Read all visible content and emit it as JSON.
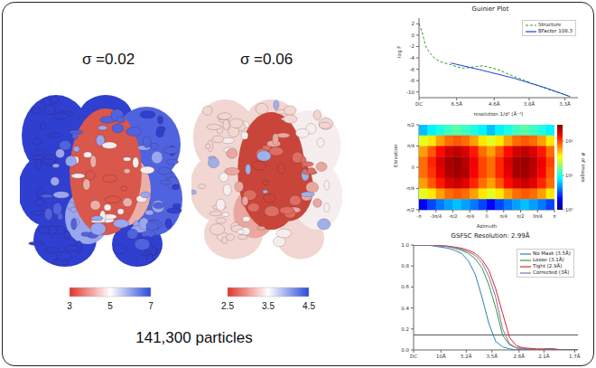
{
  "maps": [
    {
      "label": "σ =0.02",
      "colorbar": {
        "range": [
          3,
          7
        ],
        "ticks": [
          3,
          5,
          7
        ]
      }
    },
    {
      "label": "σ =0.06",
      "colorbar": {
        "range": [
          2.5,
          4.5
        ],
        "ticks": [
          2.5,
          3.5,
          4.5
        ]
      }
    }
  ],
  "particles": "141,300 particles",
  "chart_data": [
    {
      "type": "line",
      "title": "Guinier Plot",
      "x_label": "resolution 1/d² (Å⁻²)",
      "y_label": "log F",
      "series": [
        {
          "name": "Structure",
          "color": "#2ca02c",
          "line_style": "dashed",
          "x": [
            0,
            0.002,
            0.004,
            0.006,
            0.008,
            0.01,
            0.013,
            0.016,
            0.02,
            0.024,
            0.028,
            0.032,
            0.036,
            0.04,
            0.045,
            0.05,
            0.055,
            0.06,
            0.065,
            0.07,
            0.075,
            0.08,
            0.085,
            0.09,
            0.095
          ],
          "values": [
            2,
            0.5,
            -1.8,
            -2.8,
            -3.5,
            -4.1,
            -4.6,
            -4.9,
            -5.2,
            -5.6,
            -5.8,
            -5.7,
            -5.5,
            -5.4,
            -5.7,
            -6.1,
            -6.7,
            -7.3,
            -7.8,
            -8.4,
            -8.9,
            -9.4,
            -9.9,
            -10.3,
            -10.8
          ]
        },
        {
          "name": "BFactor 108.3",
          "color": "#1f3fd8",
          "line_style": "solid",
          "x": [
            0.02,
            0.04,
            0.06,
            0.08,
            0.095
          ],
          "values": [
            -4.9,
            -6.2,
            -7.6,
            -9.3,
            -10.8
          ]
        }
      ],
      "xlim": [
        0,
        0.1
      ],
      "xticks": [
        {
          "value": 0,
          "label": "DC"
        },
        {
          "value": 0.0237,
          "label": "6.5Å"
        },
        {
          "value": 0.0473,
          "label": "4.6Å"
        },
        {
          "value": 0.0693,
          "label": "3.8Å"
        },
        {
          "value": 0.0918,
          "label": "3.3Å"
        }
      ],
      "ylim": [
        -11,
        3
      ],
      "yticks": [
        -10,
        -8,
        -6,
        -4,
        -2,
        0,
        2
      ],
      "legend": "upper right"
    },
    {
      "type": "heatmap",
      "x_label": "Azimuth",
      "y_label": "Elevation",
      "xlim": [
        -3.1416,
        3.1416
      ],
      "xticks": [
        {
          "value": -3.1416,
          "label": "-π"
        },
        {
          "value": -2.3562,
          "label": "-3π/4"
        },
        {
          "value": -1.5708,
          "label": "-π/2"
        },
        {
          "value": -0.7854,
          "label": "-π/4"
        },
        0,
        {
          "value": 0.7854,
          "label": "π/4"
        },
        {
          "value": 1.5708,
          "label": "π/2"
        },
        {
          "value": 2.3562,
          "label": "3π/4"
        },
        {
          "value": 3.1416,
          "label": "π"
        }
      ],
      "ylim": [
        -1.5708,
        1.5708
      ],
      "yticks": [
        {
          "value": -1.5708,
          "label": "-π/2"
        },
        {
          "value": -0.7854,
          "label": "-π/4"
        },
        0,
        {
          "value": 0.7854,
          "label": "π/4"
        },
        {
          "value": 1.5708,
          "label": "π/2"
        }
      ],
      "cells": [
        [
          6,
          8,
          10,
          12,
          14,
          12,
          10,
          8,
          6,
          8,
          10,
          12,
          14,
          12,
          10,
          8
        ],
        [
          30,
          40,
          60,
          80,
          90,
          80,
          60,
          40,
          30,
          40,
          60,
          80,
          90,
          80,
          60,
          40
        ],
        [
          60,
          90,
          140,
          190,
          210,
          180,
          130,
          80,
          60,
          90,
          140,
          190,
          210,
          180,
          130,
          80
        ],
        [
          80,
          120,
          180,
          240,
          260,
          220,
          160,
          100,
          80,
          120,
          180,
          240,
          260,
          220,
          160,
          100
        ],
        [
          80,
          110,
          170,
          230,
          250,
          230,
          150,
          100,
          80,
          120,
          170,
          240,
          250,
          210,
          150,
          90
        ],
        [
          60,
          90,
          130,
          180,
          200,
          170,
          120,
          80,
          60,
          90,
          140,
          180,
          200,
          170,
          120,
          80
        ],
        [
          30,
          40,
          60,
          80,
          90,
          80,
          60,
          40,
          30,
          40,
          60,
          80,
          90,
          80,
          60,
          40
        ],
        [
          2,
          3,
          4,
          5,
          6,
          5,
          4,
          3,
          2,
          3,
          4,
          5,
          6,
          5,
          4,
          3
        ]
      ],
      "colorbar": {
        "label": "# of images",
        "range": [
          1,
          300
        ],
        "log": true,
        "ticks": [
          {
            "value": 1,
            "label": "10⁰"
          },
          {
            "value": 10,
            "label": "10¹"
          },
          {
            "value": 100,
            "label": "10²"
          }
        ]
      }
    },
    {
      "type": "line",
      "title": "GSFSC Resolution: 2.99Å",
      "x": [
        0,
        0.025,
        0.05,
        0.075,
        0.1,
        0.125,
        0.15,
        0.175,
        0.2,
        0.225,
        0.25,
        0.275,
        0.3,
        0.325,
        0.35,
        0.375,
        0.4,
        0.45,
        0.5,
        0.55,
        0.6
      ],
      "series": [
        {
          "name": "No Mask (3.5Å)",
          "color": "#2c7fb8",
          "values": [
            1,
            1,
            1,
            0.99,
            0.98,
            0.97,
            0.95,
            0.92,
            0.85,
            0.72,
            0.5,
            0.25,
            0.08,
            0.03,
            0.01,
            0,
            0.01,
            0,
            0.01,
            0,
            0
          ]
        },
        {
          "name": "Loose (3.1Å)",
          "color": "#2ca02c",
          "values": [
            1,
            1,
            1,
            0.995,
            0.99,
            0.985,
            0.97,
            0.95,
            0.92,
            0.87,
            0.78,
            0.62,
            0.4,
            0.14,
            0.05,
            0.02,
            0.01,
            0,
            0.01,
            0,
            0
          ]
        },
        {
          "name": "Tight (2.9Å)",
          "color": "#d62728",
          "values": [
            1,
            1,
            1,
            1,
            0.995,
            0.99,
            0.98,
            0.97,
            0.95,
            0.92,
            0.86,
            0.76,
            0.58,
            0.35,
            0.12,
            0.04,
            0.02,
            0.01,
            0.01,
            0,
            0
          ]
        },
        {
          "name": "Corrected (3Å)",
          "color": "#9467bd",
          "values": [
            1,
            1,
            1,
            0.995,
            0.99,
            0.985,
            0.975,
            0.96,
            0.935,
            0.9,
            0.83,
            0.7,
            0.5,
            0.2,
            0.06,
            0.02,
            0.01,
            0,
            0,
            0,
            0
          ]
        }
      ],
      "xlim": [
        0,
        0.6
      ],
      "xticks": [
        {
          "value": 0,
          "label": "DC"
        },
        {
          "value": 0.1,
          "label": "10Å"
        },
        {
          "value": 0.192,
          "label": "5.2Å"
        },
        {
          "value": 0.286,
          "label": "3.5Å"
        },
        {
          "value": 0.385,
          "label": "2.6Å"
        },
        {
          "value": 0.476,
          "label": "2.1Å"
        },
        {
          "value": 0.588,
          "label": "1.7Å"
        }
      ],
      "ylim": [
        0,
        1
      ],
      "yticks": [
        {
          "value": 0,
          "label": "0.0"
        },
        {
          "value": 0.2,
          "label": "0.2"
        },
        {
          "value": 0.4,
          "label": "0.4"
        },
        {
          "value": 0.6,
          "label": "0.6"
        },
        {
          "value": 0.8,
          "label": "0.8"
        },
        {
          "value": 1,
          "label": "1.0"
        }
      ],
      "threshold": 0.143,
      "legend": "upper right"
    }
  ]
}
